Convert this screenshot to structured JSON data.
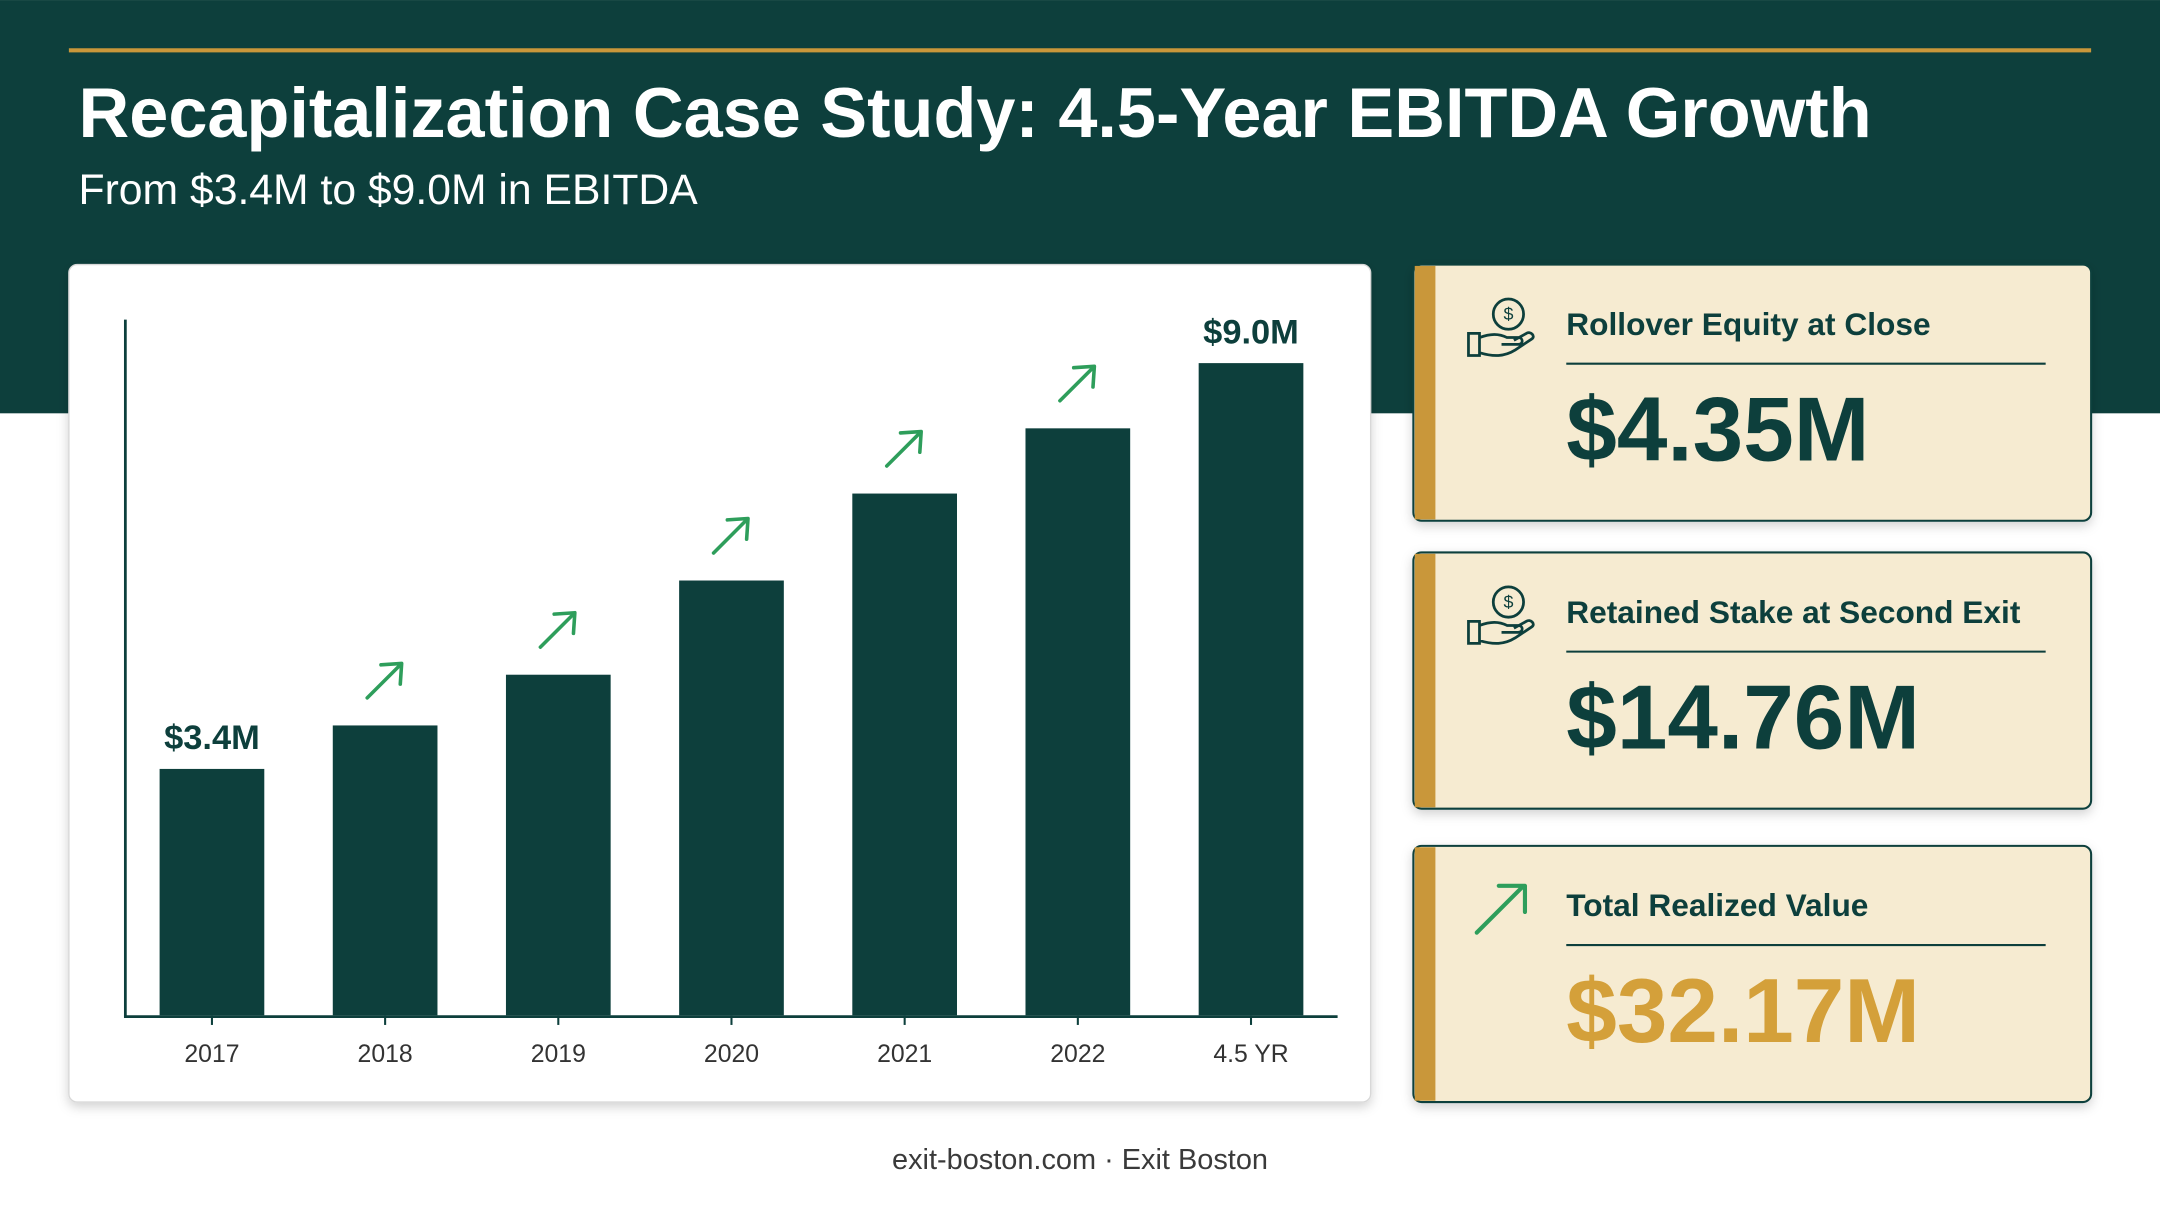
{
  "header": {
    "title": "Recapitalization Case Study: 4.5-Year EBITDA Growth",
    "subtitle": "From $3.4M to $9.0M in EBITDA"
  },
  "chart_data": {
    "type": "bar",
    "categories": [
      "2017",
      "2018",
      "2019",
      "2020",
      "2021",
      "2022",
      "4.5 YR"
    ],
    "values": [
      3.4,
      4.0,
      4.7,
      6.0,
      7.2,
      8.1,
      9.0
    ],
    "value_labels": [
      "$3.4M",
      null,
      null,
      null,
      null,
      null,
      "$9.0M"
    ],
    "color": "#0d3f3c",
    "ylim": [
      0,
      9.6
    ]
  },
  "cards": [
    {
      "label": "Rollover Equity at Close",
      "value": "$4.35M"
    },
    {
      "label": "Retained Stake at Second Exit",
      "value": "$14.76M"
    },
    {
      "label": "Total Realized Value",
      "value": "$32.17M"
    }
  ],
  "footer": "exit-boston.com · Exit Boston"
}
